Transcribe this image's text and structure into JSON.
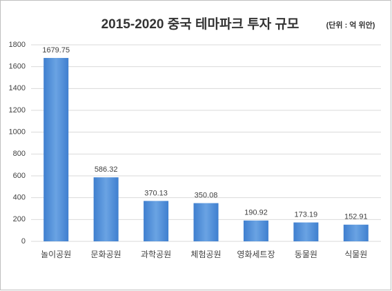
{
  "chart_data": {
    "type": "bar",
    "title": "2015-2020 중국 테마파크 투자 규모",
    "subtitle": "(단위 : 억 위안)",
    "categories": [
      "놀이공원",
      "문화공원",
      "과학공원",
      "체험공원",
      "영화세트장",
      "동물원",
      "식물원"
    ],
    "values": [
      1679.75,
      586.32,
      370.13,
      350.08,
      190.92,
      173.19,
      152.91
    ],
    "color": "#4a89d4",
    "ylim": [
      0,
      1800
    ],
    "yticks": [
      0,
      200,
      400,
      600,
      800,
      1000,
      1200,
      1400,
      1600,
      1800
    ],
    "grid": true
  }
}
